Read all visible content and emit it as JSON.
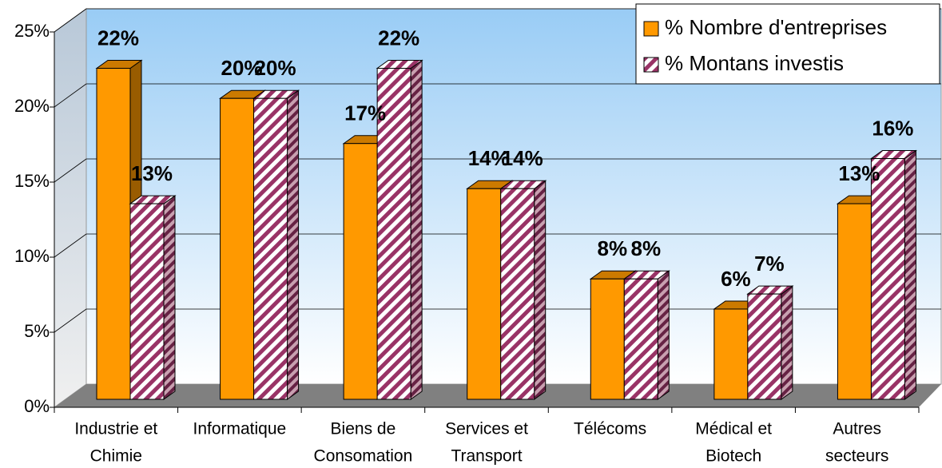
{
  "chart_data": {
    "type": "bar3d",
    "categories": [
      [
        "Industrie et",
        "Chimie"
      ],
      [
        "Informatique"
      ],
      [
        "Biens de",
        "Consomation"
      ],
      [
        "Services et",
        "Transport"
      ],
      [
        "Télécoms"
      ],
      [
        "Médical et",
        "Biotech"
      ],
      [
        "Autres",
        "secteurs"
      ]
    ],
    "series": [
      {
        "name": "% Nombre d'entreprises",
        "color": "#FF9900",
        "values": [
          22,
          20,
          17,
          14,
          8,
          6,
          13
        ],
        "value_labels": [
          "22%",
          "20%",
          "17%",
          "14%",
          "8%",
          "6%",
          "13%"
        ]
      },
      {
        "name": "% Montans investis",
        "color": "#993366",
        "pattern": "hatch",
        "values": [
          13,
          20,
          22,
          14,
          8,
          7,
          16
        ],
        "value_labels": [
          "13%",
          "20%",
          "22%",
          "14%",
          "8%",
          "7%",
          "16%"
        ]
      }
    ],
    "ylim": [
      0,
      25
    ],
    "yticks": [
      {
        "value": 0,
        "label": "0%"
      },
      {
        "value": 5,
        "label": "5%"
      },
      {
        "value": 10,
        "label": "10%"
      },
      {
        "value": 15,
        "label": "15%"
      },
      {
        "value": 20,
        "label": "20%"
      },
      {
        "value": 25,
        "label": "25%"
      }
    ],
    "grid": true,
    "legend": "top-right"
  }
}
